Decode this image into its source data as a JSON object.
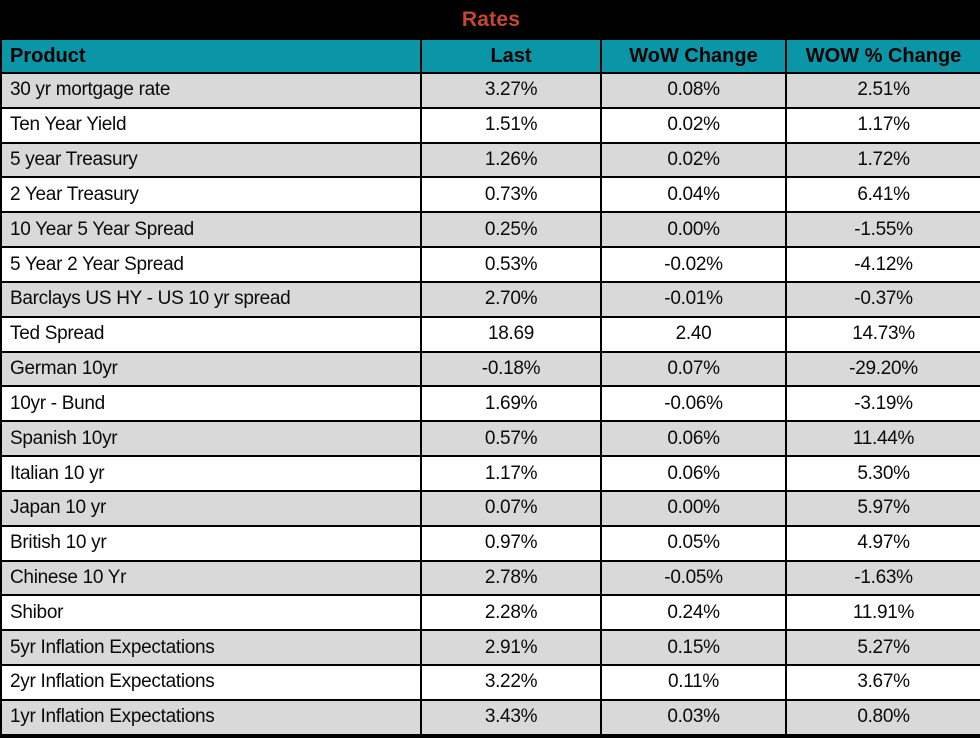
{
  "colors": {
    "header_bg": "#0b96a7",
    "title_color": "#c7472c",
    "row_alt_bg": "#d9d9d9",
    "border": "#000000",
    "title_bar_bg": "#000000"
  },
  "chart_data": {
    "type": "table",
    "title": "Rates",
    "columns": [
      "Product",
      "Last",
      "WoW Change",
      "WOW % Change"
    ],
    "rows": [
      [
        "30 yr mortgage rate",
        "3.27%",
        "0.08%",
        "2.51%"
      ],
      [
        "Ten Year Yield",
        "1.51%",
        "0.02%",
        "1.17%"
      ],
      [
        "5 year Treasury",
        "1.26%",
        "0.02%",
        "1.72%"
      ],
      [
        "2 Year Treasury",
        "0.73%",
        "0.04%",
        "6.41%"
      ],
      [
        "10 Year 5 Year Spread",
        "0.25%",
        "0.00%",
        "-1.55%"
      ],
      [
        "5 Year 2 Year Spread",
        "0.53%",
        "-0.02%",
        "-4.12%"
      ],
      [
        "Barclays US HY - US 10 yr spread",
        "2.70%",
        "-0.01%",
        "-0.37%"
      ],
      [
        "Ted Spread",
        "18.69",
        "2.40",
        "14.73%"
      ],
      [
        "German 10yr",
        "-0.18%",
        "0.07%",
        "-29.20%"
      ],
      [
        "10yr - Bund",
        "1.69%",
        "-0.06%",
        "-3.19%"
      ],
      [
        "Spanish 10yr",
        "0.57%",
        "0.06%",
        "11.44%"
      ],
      [
        "Italian 10 yr",
        "1.17%",
        "0.06%",
        "5.30%"
      ],
      [
        "Japan 10 yr",
        "0.07%",
        "0.00%",
        "5.97%"
      ],
      [
        "British 10 yr",
        "0.97%",
        "0.05%",
        "4.97%"
      ],
      [
        "Chinese 10 Yr",
        "2.78%",
        "-0.05%",
        "-1.63%"
      ],
      [
        "Shibor",
        "2.28%",
        "0.24%",
        "11.91%"
      ],
      [
        "5yr Inflation Expectations",
        "2.91%",
        "0.15%",
        "5.27%"
      ],
      [
        "2yr Inflation Expectations",
        "3.22%",
        "0.11%",
        "3.67%"
      ],
      [
        "1yr Inflation Expectations",
        "3.43%",
        "0.03%",
        "0.80%"
      ]
    ]
  }
}
